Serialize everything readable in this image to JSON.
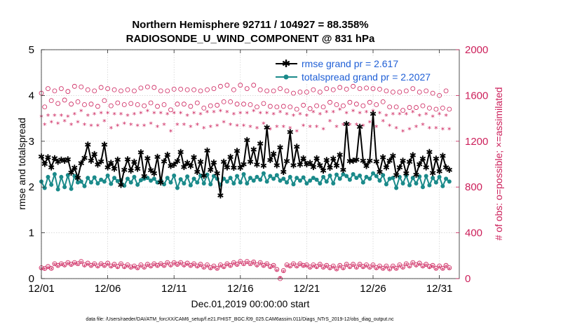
{
  "chart_data": {
    "type": "line",
    "title_line1": "Northern Hemisphere 92711 / 104927 = 88.358%",
    "title_line2": "RADIOSONDE_U_WIND_COMPONENT @ 831 hPa",
    "xlabel": "Dec.01,2019 00:00:00 start",
    "ylabel_left": "rmse and totalspread",
    "ylabel_right": "# of obs: o=possible; ×=assimilated",
    "footer": "data file: /Users/raeder/DAI/ATM_forcXX/CAM6_setup/f.e21.FHIST_BGC.f09_025.CAM6assim.011/Diags_NTrS_2019-12/obs_diag_output.nc",
    "xlim": [
      0,
      31.5
    ],
    "ylim_left": [
      0,
      5
    ],
    "ylim_right": [
      0,
      2000
    ],
    "x_ticks": [
      {
        "v": 0,
        "label": "12/01"
      },
      {
        "v": 5,
        "label": "12/06"
      },
      {
        "v": 10,
        "label": "12/11"
      },
      {
        "v": 15,
        "label": "12/16"
      },
      {
        "v": 20,
        "label": "12/21"
      },
      {
        "v": 25,
        "label": "12/26"
      },
      {
        "v": 30,
        "label": "12/31"
      }
    ],
    "y_ticks_left": [
      0,
      1,
      2,
      3,
      4,
      5
    ],
    "y_ticks_right": [
      0,
      400,
      800,
      1200,
      1600,
      2000
    ],
    "colors": {
      "rmse": "#000000",
      "spread": "#1a8a8a",
      "obs": "#cc1f5a",
      "legend_text": "#1f5fd6"
    },
    "legend_position": "top-right",
    "points_per_day": 4,
    "series": [
      {
        "name": "rmse grand pr = 2.617",
        "key": "rmse",
        "values": [
          2.67,
          2.51,
          2.65,
          2.43,
          2.63,
          2.55,
          2.6,
          2.58,
          2.61,
          2.32,
          2.42,
          2.2,
          2.52,
          2.64,
          2.93,
          2.58,
          2.72,
          2.49,
          2.56,
          2.93,
          2.43,
          2.53,
          2.4,
          2.6,
          2.05,
          2.38,
          2.61,
          2.36,
          2.55,
          2.4,
          2.76,
          2.24,
          2.63,
          2.37,
          2.3,
          2.66,
          2.1,
          2.56,
          2.71,
          2.46,
          2.49,
          2.57,
          2.77,
          2.44,
          2.53,
          2.46,
          2.65,
          2.33,
          2.55,
          2.25,
          2.8,
          2.38,
          2.54,
          2.3,
          1.82,
          2.55,
          2.43,
          2.66,
          2.42,
          2.79,
          2.42,
          2.5,
          3.03,
          2.55,
          2.82,
          2.49,
          2.95,
          2.47,
          3.3,
          2.59,
          2.73,
          2.48,
          2.87,
          2.33,
          2.57,
          3.2,
          2.48,
          2.88,
          2.49,
          2.63,
          2.5,
          2.53,
          2.44,
          2.63,
          2.48,
          2.36,
          2.59,
          2.42,
          2.62,
          2.47,
          2.71,
          2.38,
          3.38,
          2.57,
          2.58,
          2.6,
          3.32,
          2.58,
          2.46,
          2.58,
          3.6,
          2.56,
          2.33,
          2.65,
          2.43,
          2.58,
          2.68,
          2.26,
          2.43,
          2.58,
          2.3,
          2.55,
          2.7,
          2.27,
          2.5,
          2.62,
          2.43,
          2.77,
          2.31,
          2.62,
          2.35,
          2.68,
          2.43,
          2.38
        ]
      },
      {
        "name": "totalspread grand pr = 2.2027",
        "key": "spread",
        "values": [
          2.12,
          1.98,
          2.22,
          2.05,
          2.28,
          1.95,
          2.22,
          2.0,
          2.26,
          1.96,
          2.24,
          2.1,
          2.12,
          2.02,
          2.2,
          2.1,
          2.21,
          2.08,
          2.16,
          2.12,
          2.25,
          2.07,
          2.2,
          2.13,
          2.15,
          2.03,
          2.18,
          2.1,
          2.22,
          2.05,
          2.15,
          2.18,
          2.2,
          2.14,
          2.18,
          2.1,
          2.15,
          2.06,
          2.2,
          2.1,
          2.25,
          1.98,
          2.17,
          2.08,
          2.23,
          2.04,
          2.18,
          2.1,
          2.25,
          2.08,
          2.27,
          2.06,
          2.24,
          2.18,
          2.05,
          2.18,
          2.12,
          2.2,
          2.08,
          2.24,
          2.1,
          2.28,
          2.08,
          2.2,
          2.14,
          2.22,
          2.16,
          2.3,
          2.12,
          2.24,
          2.18,
          2.26,
          2.14,
          2.18,
          2.1,
          2.22,
          2.06,
          2.2,
          2.14,
          2.21,
          2.08,
          2.14,
          2.2,
          2.16,
          2.08,
          2.22,
          2.12,
          2.25,
          2.08,
          2.27,
          2.18,
          2.28,
          2.24,
          2.16,
          2.28,
          2.2,
          2.25,
          2.1,
          2.22,
          2.18,
          2.3,
          2.24,
          2.14,
          2.26,
          2.06,
          2.18,
          2.2,
          1.98,
          2.22,
          2.08,
          2.25,
          2.04,
          2.2,
          2.08,
          2.23,
          2.0,
          2.24,
          2.04,
          2.2,
          2.1,
          2.22,
          2.02,
          2.18,
          2.12
        ]
      }
    ],
    "obs_possible": [
      1620,
      1500,
      1660,
      1555,
      1640,
      1530,
      1660,
      1560,
      1635,
      1525,
      1680,
      1545,
      1675,
      1520,
      1650,
      1525,
      1640,
      1505,
      1670,
      1555,
      1660,
      1510,
      1650,
      1535,
      1640,
      1520,
      1650,
      1530,
      1640,
      1520,
      1665,
      1510,
      1675,
      1535,
      1670,
      1505,
      1640,
      1520,
      1640,
      1475,
      1655,
      1525,
      1655,
      1525,
      1650,
      1505,
      1650,
      1535,
      1640,
      1490,
      1650,
      1510,
      1660,
      1515,
      1680,
      1545,
      1690,
      1545,
      1650,
      1525,
      1690,
      1525,
      1660,
      1520,
      1690,
      1500,
      1650,
      1530,
      1640,
      1505,
      1640,
      1500,
      1660,
      1505,
      1640,
      1500,
      1620,
      1480,
      1630,
      1515,
      1630,
      1485,
      1650,
      1510,
      1630,
      1500,
      1660,
      1540,
      1650,
      1520,
      1670,
      1510,
      1655,
      1540,
      1680,
      1525,
      1660,
      1510,
      1665,
      1540,
      1660,
      1520,
      1655,
      1545,
      1640,
      1500,
      1630,
      1500,
      1630,
      1470,
      1640,
      1495,
      1660,
      1495,
      1630,
      1510,
      1640,
      1490,
      1620,
      1480,
      1600,
      1490,
      1640,
      1480
    ],
    "obs_assimilated": [
      1410,
      1340,
      1420,
      1360,
      1420,
      1350,
      1420,
      1370,
      1410,
      1340,
      1430,
      1360,
      1460,
      1340,
      1420,
      1330,
      1430,
      1330,
      1440,
      1370,
      1440,
      1310,
      1430,
      1330,
      1430,
      1350,
      1420,
      1340,
      1430,
      1330,
      1440,
      1330,
      1460,
      1350,
      1440,
      1320,
      1440,
      1340,
      1430,
      1280,
      1440,
      1340,
      1440,
      1340,
      1420,
      1320,
      1440,
      1340,
      1430,
      1310,
      1450,
      1320,
      1450,
      1330,
      1460,
      1360,
      1450,
      1340,
      1430,
      1330,
      1440,
      1330,
      1440,
      1320,
      1460,
      1310,
      1440,
      1350,
      1440,
      1300,
      1430,
      1320,
      1450,
      1320,
      1430,
      1310,
      1420,
      1280,
      1430,
      1330,
      1420,
      1320,
      1450,
      1320,
      1430,
      1300,
      1450,
      1370,
      1450,
      1320,
      1470,
      1340,
      1440,
      1340,
      1460,
      1340,
      1440,
      1330,
      1450,
      1360,
      1460,
      1320,
      1440,
      1370,
      1420,
      1330,
      1430,
      1310,
      1430,
      1280,
      1430,
      1300,
      1450,
      1320,
      1420,
      1340,
      1430,
      1310,
      1410,
      1310,
      1430,
      1300,
      1420,
      1300
    ],
    "obs_low_possible": [
      95,
      88,
      105,
      90,
      130,
      115,
      130,
      120,
      140,
      125,
      140,
      130,
      150,
      120,
      135,
      115,
      130,
      110,
      130,
      115,
      135,
      110,
      125,
      105,
      130,
      105,
      120,
      100,
      110,
      95,
      120,
      100,
      125,
      110,
      130,
      115,
      130,
      115,
      140,
      120,
      140,
      125,
      140,
      120,
      135,
      115,
      130,
      110,
      125,
      100,
      120,
      95,
      110,
      90,
      120,
      105,
      130,
      115,
      140,
      125,
      150,
      130,
      150,
      130,
      145,
      120,
      140,
      115,
      130,
      105,
      115,
      80,
      0,
      70,
      120,
      110,
      130,
      110,
      130,
      115,
      120,
      100,
      120,
      105,
      125,
      100,
      115,
      95,
      110,
      85,
      115,
      95,
      125,
      105,
      125,
      100,
      125,
      105,
      120,
      100,
      120,
      95,
      110,
      90,
      110,
      85,
      110,
      90,
      120,
      100,
      130,
      110,
      140,
      120,
      135,
      110,
      125,
      105,
      115,
      90,
      110,
      90,
      115,
      95
    ],
    "obs_low_assimilated": [
      80,
      75,
      90,
      78,
      115,
      100,
      115,
      105,
      125,
      110,
      125,
      115,
      135,
      105,
      120,
      100,
      115,
      95,
      115,
      100,
      120,
      95,
      110,
      90,
      115,
      90,
      105,
      85,
      95,
      80,
      105,
      85,
      110,
      95,
      115,
      100,
      115,
      100,
      125,
      105,
      125,
      110,
      125,
      105,
      120,
      100,
      115,
      95,
      110,
      85,
      105,
      80,
      95,
      75,
      105,
      90,
      115,
      100,
      125,
      110,
      135,
      115,
      135,
      115,
      130,
      105,
      125,
      100,
      115,
      90,
      100,
      65,
      0,
      55,
      105,
      95,
      115,
      95,
      115,
      100,
      105,
      85,
      105,
      90,
      110,
      85,
      100,
      80,
      95,
      70,
      100,
      80,
      110,
      90,
      110,
      85,
      110,
      90,
      105,
      85,
      105,
      80,
      95,
      75,
      95,
      70,
      95,
      75,
      105,
      85,
      115,
      95,
      125,
      105,
      120,
      95,
      110,
      90,
      100,
      75,
      95,
      75,
      100,
      80
    ]
  }
}
